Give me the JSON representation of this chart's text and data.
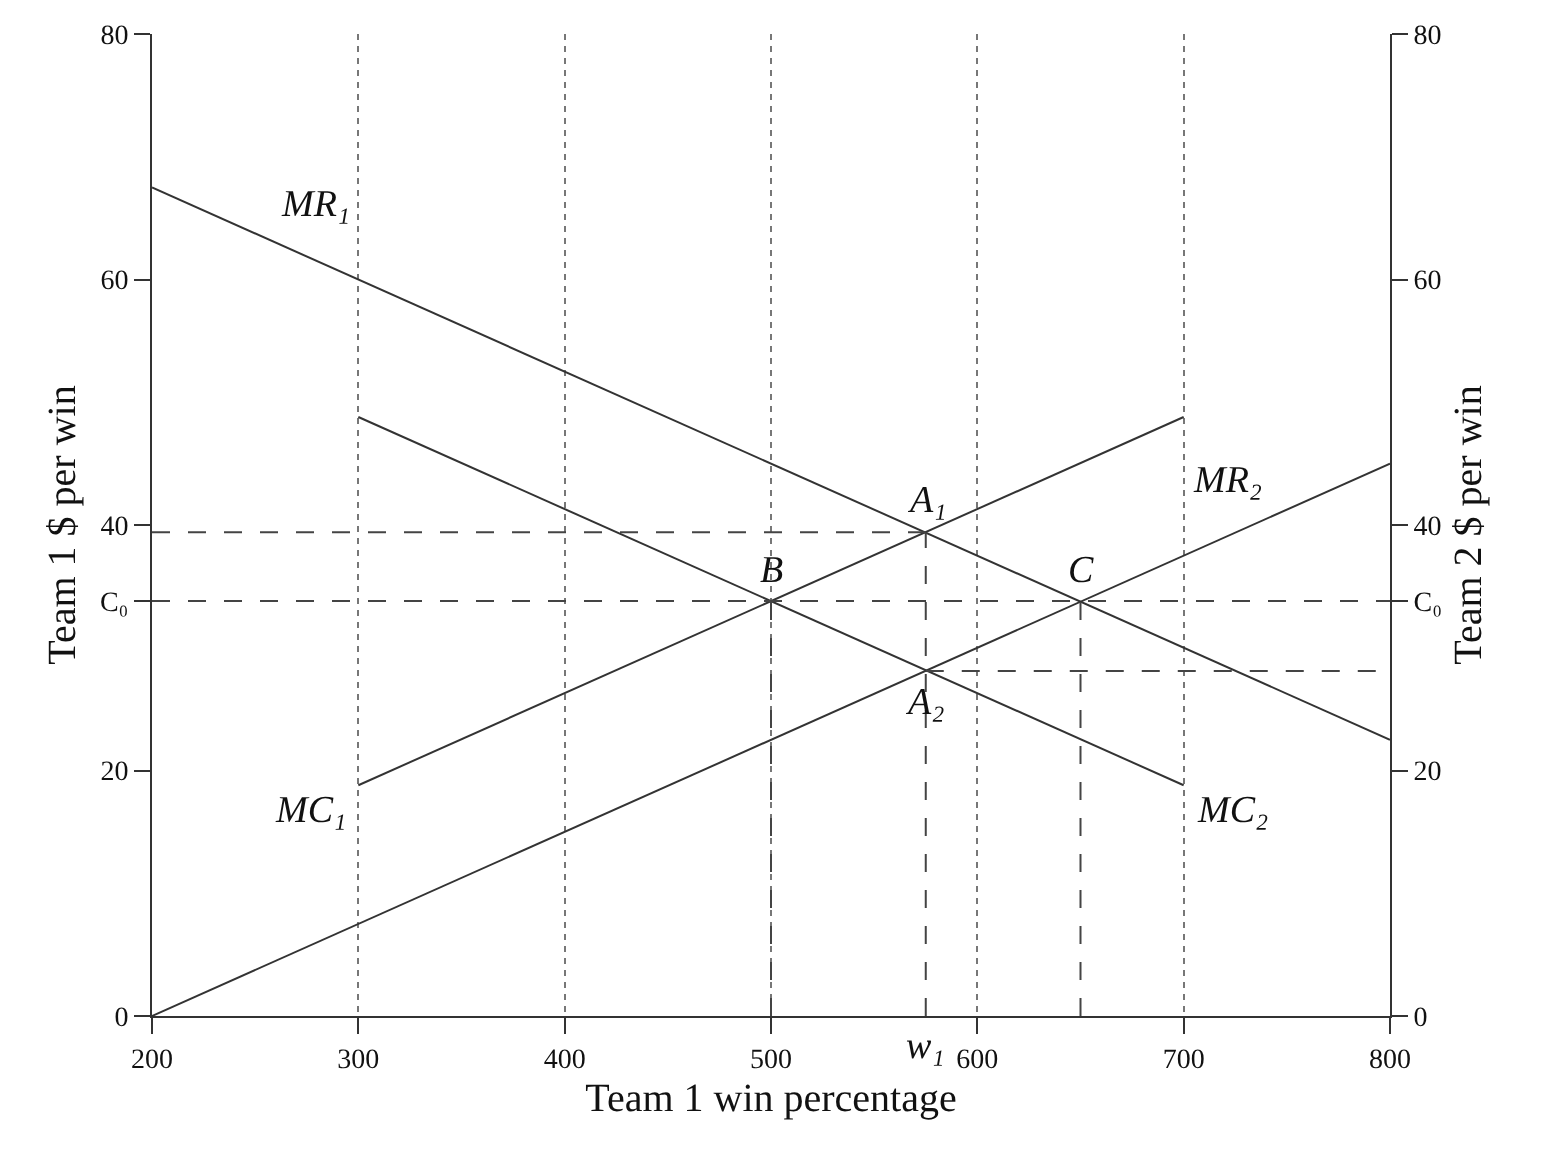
{
  "chart_data": {
    "type": "line",
    "xlabel": "Team 1 win percentage",
    "ylabel": "Team 1 $ per win",
    "y2label": "Team 2 $ per win",
    "xlim": [
      200,
      800
    ],
    "xticks": [
      200,
      300,
      400,
      500,
      600,
      700,
      800
    ],
    "ylim": [
      0,
      80
    ],
    "yticks": [
      0,
      20,
      {
        "value": 33.8,
        "label": "C₀"
      },
      40,
      60,
      80
    ],
    "y2lim": [
      0,
      80
    ],
    "y2ticks": [
      0,
      20,
      {
        "value": 33.8,
        "label": "C₀"
      },
      40,
      60,
      80
    ],
    "grid": "x",
    "legend": false,
    "marker": "none",
    "series": [
      {
        "name": "MR₁",
        "color": "#333333",
        "x": [
          200,
          800
        ],
        "values": [
          67.5,
          22.5
        ]
      },
      {
        "name": "MC₁",
        "color": "#333333",
        "x": [
          300,
          700
        ],
        "values": [
          18.8,
          48.8
        ]
      },
      {
        "name": "MC₂",
        "color": "#333333",
        "x": [
          300,
          700
        ],
        "values": [
          48.8,
          18.8
        ]
      },
      {
        "name": "MR₂",
        "color": "#333333",
        "x": [
          200,
          800
        ],
        "values": [
          0,
          45
        ]
      },
      {
        "color": "#444444",
        "line_style": "dashed",
        "x": [
          200,
          575
        ],
        "values": [
          39.4,
          39.4
        ]
      },
      {
        "color": "#444444",
        "line_style": "dashed",
        "x": [
          200,
          800
        ],
        "values": [
          33.8,
          33.8
        ]
      },
      {
        "color": "#444444",
        "line_style": "dashed",
        "x": [
          575,
          800
        ],
        "values": [
          28.1,
          28.1
        ]
      },
      {
        "color": "#444444",
        "line_style": "dashed",
        "x": [
          500,
          500
        ],
        "values": [
          0,
          33.8
        ]
      },
      {
        "color": "#444444",
        "line_style": "dashed",
        "x": [
          575,
          575
        ],
        "values": [
          0,
          39.4
        ]
      },
      {
        "color": "#444444",
        "line_style": "dashed",
        "x": [
          650,
          650
        ],
        "values": [
          0,
          33.8
        ]
      }
    ],
    "annotations": [
      {
        "text": "A₁",
        "x": 575,
        "y": 39.4
      },
      {
        "text": "B",
        "x": 500,
        "y": 33.8
      },
      {
        "text": "C",
        "x": 650,
        "y": 33.8
      },
      {
        "text": "A₂",
        "x": 575,
        "y": 28.1
      },
      {
        "text": "w₁",
        "x": 575,
        "y": 0
      }
    ]
  }
}
